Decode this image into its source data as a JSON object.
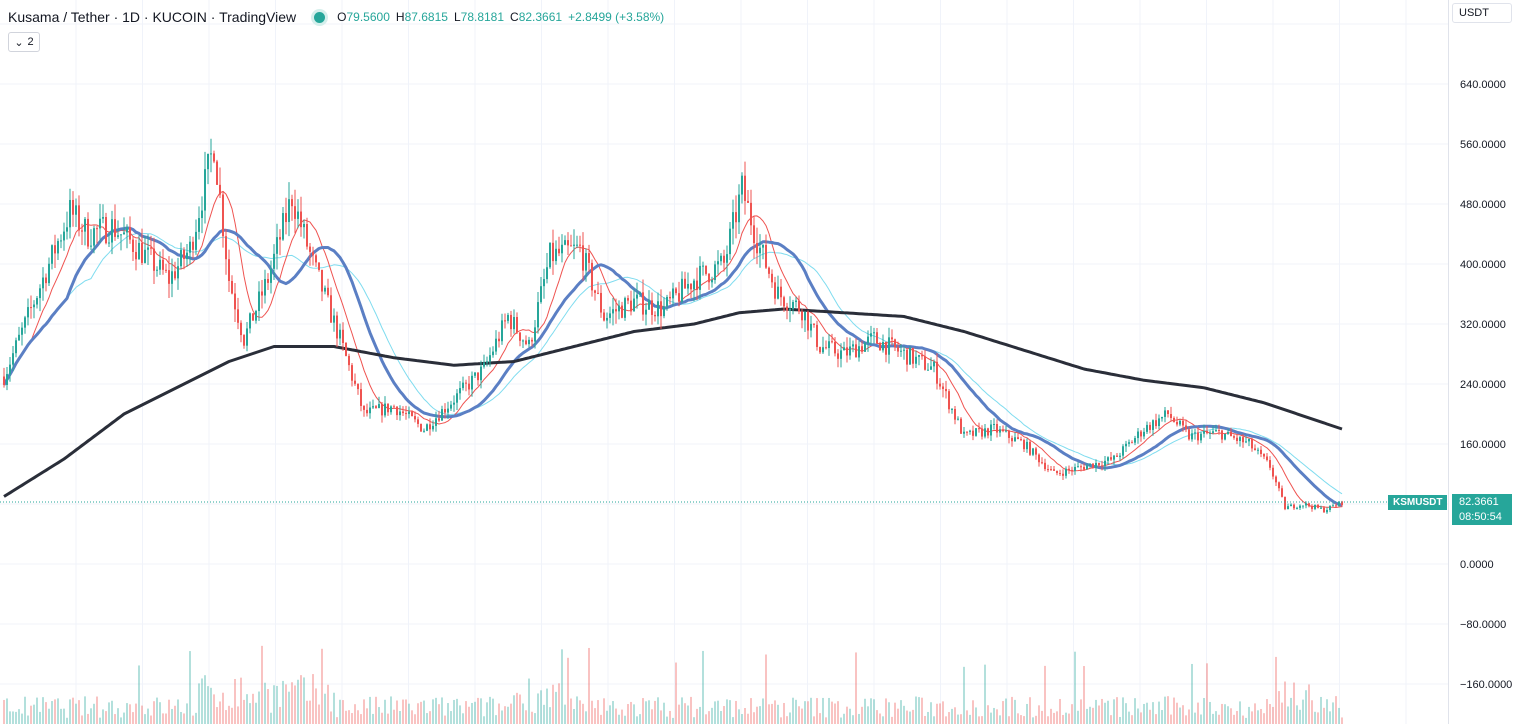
{
  "header": {
    "symbol_title": "Kusama / Tether · 1D · KUCOIN · TradingView",
    "open": "79.5600",
    "high": "87.6815",
    "low": "78.8181",
    "close": "82.3661",
    "change": "+2.8499 (+3.58%)",
    "ohlc_labels": {
      "open": "O",
      "high": "H",
      "low": "L",
      "close": "C"
    }
  },
  "indicators_collapse": {
    "count": "2"
  },
  "price_axis": {
    "currency": "USDT",
    "ticks": [
      "640.0000",
      "560.0000",
      "480.0000",
      "400.0000",
      "320.0000",
      "240.0000",
      "160.0000",
      "0.0000",
      "−80.0000",
      "−160.0000"
    ]
  },
  "last_price": {
    "symbol": "KSMUSDT",
    "value": "82.3661",
    "countdown": "08:50:54"
  },
  "colors": {
    "up": "#26a69a",
    "down": "#ef5350",
    "ma_fast": "#ef5350",
    "ma_mid": "#5b7fc4",
    "ma_cyan": "#7fdcef",
    "ma_slow": "#2a2e39"
  },
  "chart_data": {
    "type": "line",
    "ylim": [
      -170,
      720
    ],
    "keyframes": [
      {
        "d": 0,
        "v": 250
      },
      {
        "d": 8,
        "v": 330
      },
      {
        "d": 15,
        "v": 400
      },
      {
        "d": 22,
        "v": 470
      },
      {
        "d": 28,
        "v": 440
      },
      {
        "d": 36,
        "v": 450
      },
      {
        "d": 45,
        "v": 420
      },
      {
        "d": 55,
        "v": 380
      },
      {
        "d": 62,
        "v": 420
      },
      {
        "d": 70,
        "v": 560
      },
      {
        "d": 75,
        "v": 380
      },
      {
        "d": 80,
        "v": 300
      },
      {
        "d": 88,
        "v": 380
      },
      {
        "d": 96,
        "v": 490
      },
      {
        "d": 103,
        "v": 400
      },
      {
        "d": 112,
        "v": 300
      },
      {
        "d": 120,
        "v": 200
      },
      {
        "d": 130,
        "v": 210
      },
      {
        "d": 140,
        "v": 180
      },
      {
        "d": 150,
        "v": 220
      },
      {
        "d": 160,
        "v": 260
      },
      {
        "d": 168,
        "v": 330
      },
      {
        "d": 175,
        "v": 290
      },
      {
        "d": 182,
        "v": 410
      },
      {
        "d": 192,
        "v": 420
      },
      {
        "d": 200,
        "v": 330
      },
      {
        "d": 210,
        "v": 350
      },
      {
        "d": 220,
        "v": 340
      },
      {
        "d": 230,
        "v": 380
      },
      {
        "d": 240,
        "v": 400
      },
      {
        "d": 246,
        "v": 500
      },
      {
        "d": 252,
        "v": 420
      },
      {
        "d": 258,
        "v": 360
      },
      {
        "d": 266,
        "v": 340
      },
      {
        "d": 272,
        "v": 290
      },
      {
        "d": 280,
        "v": 280
      },
      {
        "d": 290,
        "v": 300
      },
      {
        "d": 300,
        "v": 280
      },
      {
        "d": 310,
        "v": 260
      },
      {
        "d": 320,
        "v": 170
      },
      {
        "d": 330,
        "v": 180
      },
      {
        "d": 340,
        "v": 160
      },
      {
        "d": 350,
        "v": 120
      },
      {
        "d": 360,
        "v": 130
      },
      {
        "d": 370,
        "v": 140
      },
      {
        "d": 380,
        "v": 180
      },
      {
        "d": 388,
        "v": 200
      },
      {
        "d": 395,
        "v": 170
      },
      {
        "d": 405,
        "v": 175
      },
      {
        "d": 415,
        "v": 160
      },
      {
        "d": 422,
        "v": 130
      },
      {
        "d": 427,
        "v": 75
      },
      {
        "d": 433,
        "v": 80
      },
      {
        "d": 440,
        "v": 72
      },
      {
        "d": 446,
        "v": 82
      }
    ],
    "ma_slow_points": [
      {
        "d": 0,
        "v": 90
      },
      {
        "d": 20,
        "v": 140
      },
      {
        "d": 40,
        "v": 200
      },
      {
        "d": 60,
        "v": 240
      },
      {
        "d": 75,
        "v": 270
      },
      {
        "d": 90,
        "v": 290
      },
      {
        "d": 110,
        "v": 290
      },
      {
        "d": 130,
        "v": 275
      },
      {
        "d": 150,
        "v": 265
      },
      {
        "d": 170,
        "v": 270
      },
      {
        "d": 190,
        "v": 290
      },
      {
        "d": 210,
        "v": 310
      },
      {
        "d": 230,
        "v": 320
      },
      {
        "d": 245,
        "v": 335
      },
      {
        "d": 260,
        "v": 340
      },
      {
        "d": 280,
        "v": 335
      },
      {
        "d": 300,
        "v": 330
      },
      {
        "d": 320,
        "v": 310
      },
      {
        "d": 340,
        "v": 285
      },
      {
        "d": 360,
        "v": 260
      },
      {
        "d": 380,
        "v": 245
      },
      {
        "d": 400,
        "v": 235
      },
      {
        "d": 420,
        "v": 215
      },
      {
        "d": 446,
        "v": 180
      }
    ]
  }
}
